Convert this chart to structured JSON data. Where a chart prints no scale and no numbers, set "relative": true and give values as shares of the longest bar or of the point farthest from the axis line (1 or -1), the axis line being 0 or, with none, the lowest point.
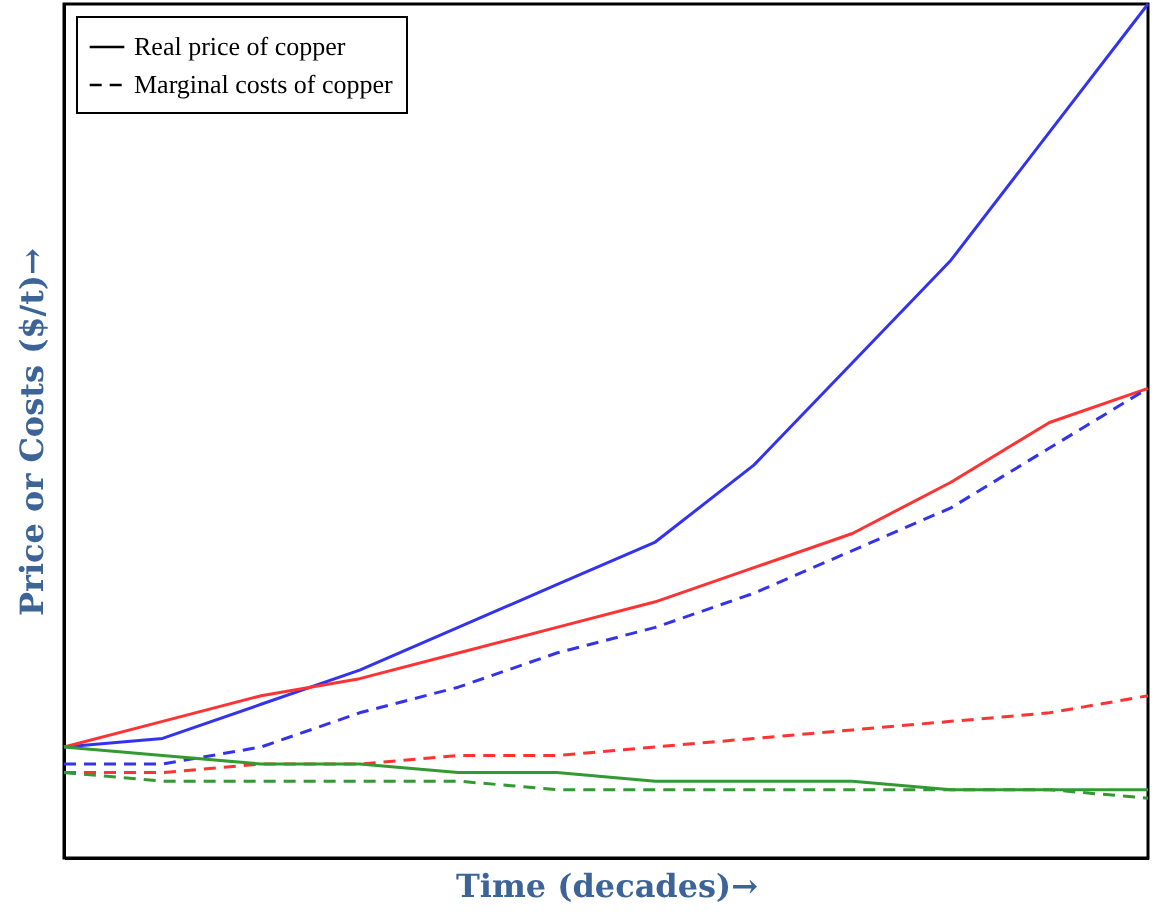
{
  "chart_data": {
    "type": "line",
    "relative": true,
    "xlabel": "Time (decades)→",
    "ylabel": "Price or Costs ($/t)→",
    "categories": [
      null,
      null,
      null,
      null,
      null,
      null,
      null,
      null,
      null,
      null,
      null,
      null
    ],
    "annotations": [
      "Real price of copper",
      "Marginal costs of copper"
    ],
    "series": [
      {
        "color": "#3333ee",
        "line_style": "solid",
        "values": [
          0.13,
          0.14,
          0.18,
          0.22,
          0.27,
          0.32,
          0.37,
          0.46,
          0.58,
          0.7,
          0.85,
          1
        ]
      },
      {
        "color": "#ff3333",
        "line_style": "solid",
        "values": [
          0.13,
          0.16,
          0.19,
          0.21,
          0.24,
          0.27,
          0.3,
          0.34,
          0.38,
          0.44,
          0.51,
          0.55
        ]
      },
      {
        "color": "#3333ee",
        "line_style": "dashed",
        "values": [
          0.11,
          0.11,
          0.13,
          0.17,
          0.2,
          0.24,
          0.27,
          0.31,
          0.36,
          0.41,
          0.48,
          0.55
        ]
      },
      {
        "color": "#ff3333",
        "line_style": "dashed",
        "values": [
          0.1,
          0.1,
          0.11,
          0.11,
          0.12,
          0.12,
          0.13,
          0.14,
          0.15,
          0.16,
          0.17,
          0.19
        ]
      },
      {
        "color": "#339933",
        "line_style": "solid",
        "values": [
          0.13,
          0.12,
          0.11,
          0.11,
          0.1,
          0.1,
          0.09,
          0.09,
          0.09,
          0.08,
          0.08,
          0.08
        ]
      },
      {
        "color": "#339933",
        "line_style": "dashed",
        "values": [
          0.1,
          0.09,
          0.09,
          0.09,
          0.09,
          0.08,
          0.08,
          0.08,
          0.08,
          0.08,
          0.08,
          0.07
        ]
      }
    ]
  }
}
